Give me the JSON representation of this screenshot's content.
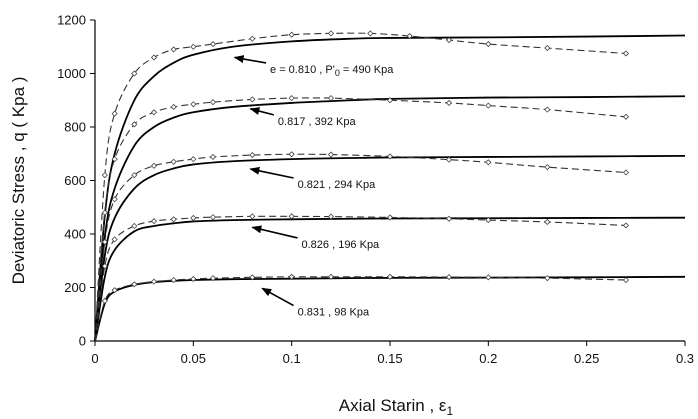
{
  "chart_data": {
    "type": "line",
    "title": "",
    "xlabel": "Axial Starin , ε",
    "xlabel_sub": "1",
    "ylabel": "Deviatoric Stress , q ( Kpa )",
    "xlim": [
      0,
      0.3
    ],
    "ylim": [
      0,
      1200
    ],
    "xticks": [
      0,
      0.05,
      0.1,
      0.15,
      0.2,
      0.25,
      0.3
    ],
    "xtick_labels": [
      "0",
      "0.05",
      "0.1",
      "0.15",
      "0.2",
      "0.25",
      "0.3"
    ],
    "yticks": [
      0,
      200,
      400,
      600,
      800,
      1000,
      1200
    ],
    "ytick_labels": [
      "0",
      "200",
      "400",
      "600",
      "800",
      "1000",
      "1200"
    ],
    "grid": false,
    "legend": "none",
    "series": [
      {
        "style": "solid",
        "x": [
          0,
          0.005,
          0.01,
          0.02,
          0.03,
          0.04,
          0.05,
          0.07,
          0.1,
          0.13,
          0.15,
          0.2,
          0.25,
          0.3
        ],
        "y": [
          0,
          470,
          700,
          900,
          990,
          1040,
          1070,
          1100,
          1120,
          1130,
          1133,
          1135,
          1138,
          1142
        ]
      },
      {
        "style": "dashed",
        "x": [
          0,
          0.005,
          0.01,
          0.02,
          0.03,
          0.04,
          0.05,
          0.06,
          0.08,
          0.1,
          0.12,
          0.14,
          0.16,
          0.18,
          0.2,
          0.23,
          0.27
        ],
        "y": [
          0,
          620,
          850,
          1000,
          1060,
          1090,
          1100,
          1110,
          1130,
          1145,
          1150,
          1150,
          1140,
          1125,
          1110,
          1095,
          1075
        ]
      },
      {
        "style": "solid",
        "x": [
          0,
          0.005,
          0.01,
          0.02,
          0.03,
          0.04,
          0.05,
          0.07,
          0.1,
          0.13,
          0.15,
          0.2,
          0.25,
          0.3
        ],
        "y": [
          0,
          390,
          570,
          730,
          800,
          835,
          855,
          875,
          890,
          900,
          905,
          910,
          912,
          915
        ]
      },
      {
        "style": "dashed",
        "x": [
          0,
          0.005,
          0.01,
          0.02,
          0.03,
          0.04,
          0.05,
          0.06,
          0.08,
          0.1,
          0.12,
          0.15,
          0.18,
          0.2,
          0.23,
          0.27
        ],
        "y": [
          0,
          480,
          680,
          810,
          855,
          875,
          885,
          893,
          903,
          908,
          908,
          900,
          890,
          880,
          865,
          838
        ]
      },
      {
        "style": "solid",
        "x": [
          0,
          0.005,
          0.01,
          0.02,
          0.03,
          0.04,
          0.05,
          0.07,
          0.1,
          0.13,
          0.15,
          0.2,
          0.25,
          0.3
        ],
        "y": [
          0,
          320,
          460,
          570,
          620,
          645,
          660,
          672,
          680,
          684,
          686,
          688,
          690,
          692
        ]
      },
      {
        "style": "dashed",
        "x": [
          0,
          0.005,
          0.01,
          0.02,
          0.03,
          0.04,
          0.05,
          0.06,
          0.08,
          0.1,
          0.12,
          0.15,
          0.18,
          0.2,
          0.23,
          0.27
        ],
        "y": [
          0,
          370,
          530,
          620,
          655,
          670,
          680,
          688,
          695,
          698,
          697,
          690,
          678,
          668,
          650,
          630
        ]
      },
      {
        "style": "solid",
        "x": [
          0,
          0.005,
          0.01,
          0.02,
          0.03,
          0.04,
          0.05,
          0.07,
          0.1,
          0.13,
          0.15,
          0.2,
          0.25,
          0.3
        ],
        "y": [
          0,
          240,
          340,
          410,
          430,
          440,
          447,
          452,
          455,
          457,
          458,
          459,
          460,
          461
        ]
      },
      {
        "style": "dashed",
        "x": [
          0,
          0.005,
          0.01,
          0.02,
          0.03,
          0.04,
          0.05,
          0.06,
          0.08,
          0.1,
          0.12,
          0.15,
          0.18,
          0.2,
          0.23,
          0.27
        ],
        "y": [
          0,
          280,
          380,
          430,
          448,
          455,
          460,
          463,
          466,
          466,
          465,
          462,
          457,
          452,
          445,
          432
        ]
      },
      {
        "style": "solid",
        "x": [
          0,
          0.005,
          0.01,
          0.02,
          0.03,
          0.04,
          0.05,
          0.07,
          0.1,
          0.13,
          0.15,
          0.2,
          0.25,
          0.3
        ],
        "y": [
          0,
          140,
          185,
          210,
          220,
          225,
          228,
          231,
          233,
          235,
          236,
          237,
          238,
          240
        ]
      },
      {
        "style": "dashed",
        "x": [
          0,
          0.005,
          0.01,
          0.02,
          0.03,
          0.04,
          0.05,
          0.06,
          0.08,
          0.1,
          0.12,
          0.15,
          0.18,
          0.2,
          0.23,
          0.27
        ],
        "y": [
          0,
          150,
          190,
          212,
          222,
          228,
          232,
          235,
          238,
          240,
          240,
          240,
          239,
          238,
          235,
          228
        ]
      }
    ],
    "annotations": [
      {
        "text": "e = 0.810 , P'",
        "sub": "0",
        "tail": " = 490 Kpa",
        "arrow_to": [
          0.071,
          1060
        ],
        "text_at": [
          0.089,
          1002
        ]
      },
      {
        "text": "0.817 , 392 Kpa",
        "arrow_to": [
          0.079,
          868
        ],
        "text_at": [
          0.093,
          808
        ]
      },
      {
        "text": "0.821 , 294 Kpa",
        "arrow_to": [
          0.079,
          643
        ],
        "text_at": [
          0.103,
          572
        ]
      },
      {
        "text": "0.826  , 196 Kpa",
        "arrow_to": [
          0.08,
          425
        ],
        "text_at": [
          0.105,
          348
        ]
      },
      {
        "text": "0.831 , 98 Kpa",
        "arrow_to": [
          0.085,
          197
        ],
        "text_at": [
          0.103,
          95
        ]
      }
    ]
  }
}
